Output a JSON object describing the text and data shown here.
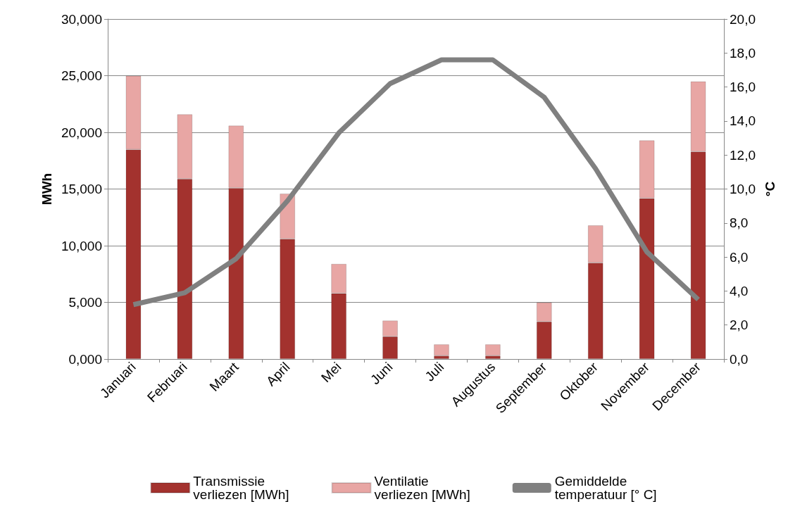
{
  "chart_data": {
    "type": "bar",
    "stacked": true,
    "ylabel": "MWh",
    "y2label": "°C",
    "categories": [
      "Januari",
      "Februari",
      "Maart",
      "April",
      "Mei",
      "Juni",
      "Juli",
      "Augustus",
      "September",
      "Oktober",
      "November",
      "December"
    ],
    "series": [
      {
        "name": "Transmissie verliezen [MWh]",
        "color": "#a3322e",
        "values": [
          18.5,
          15.9,
          15.1,
          10.6,
          5.8,
          2.0,
          0.3,
          0.3,
          3.3,
          8.5,
          14.2,
          18.3
        ]
      },
      {
        "name": "Ventilatie verliezen [MWh]",
        "color": "#e8a6a4",
        "values": [
          6.5,
          5.7,
          5.5,
          4.0,
          2.6,
          1.4,
          1.0,
          1.0,
          1.7,
          3.3,
          5.1,
          6.2
        ]
      },
      {
        "name": "Gemiddelde temperatuur [° C]",
        "type": "line",
        "axis": "y2",
        "color": "#808080",
        "values": [
          3.2,
          3.9,
          5.9,
          9.3,
          13.3,
          16.2,
          17.6,
          17.6,
          15.4,
          11.2,
          6.3,
          3.5
        ]
      }
    ],
    "ylim": [
      0,
      30
    ],
    "yticks": [
      {
        "value": 0,
        "label": "0,000"
      },
      {
        "value": 5,
        "label": "5,000"
      },
      {
        "value": 10,
        "label": "10,000"
      },
      {
        "value": 15,
        "label": "15,000"
      },
      {
        "value": 20,
        "label": "20,000"
      },
      {
        "value": 25,
        "label": "25,000"
      },
      {
        "value": 30,
        "label": "30,000"
      }
    ],
    "y2lim": [
      0,
      20
    ],
    "y2ticks": [
      {
        "value": 0,
        "label": "0,0"
      },
      {
        "value": 2,
        "label": "2,0"
      },
      {
        "value": 4,
        "label": "4,0"
      },
      {
        "value": 6,
        "label": "6,0"
      },
      {
        "value": 8,
        "label": "8,0"
      },
      {
        "value": 10,
        "label": "10,0"
      },
      {
        "value": 12,
        "label": "12,0"
      },
      {
        "value": 14,
        "label": "14,0"
      },
      {
        "value": 16,
        "label": "16,0"
      },
      {
        "value": 18,
        "label": "18,0"
      },
      {
        "value": 20,
        "label": "20,0"
      }
    ],
    "grid": "y",
    "legend": "bottom",
    "marker": "none",
    "line_style": "solid"
  }
}
